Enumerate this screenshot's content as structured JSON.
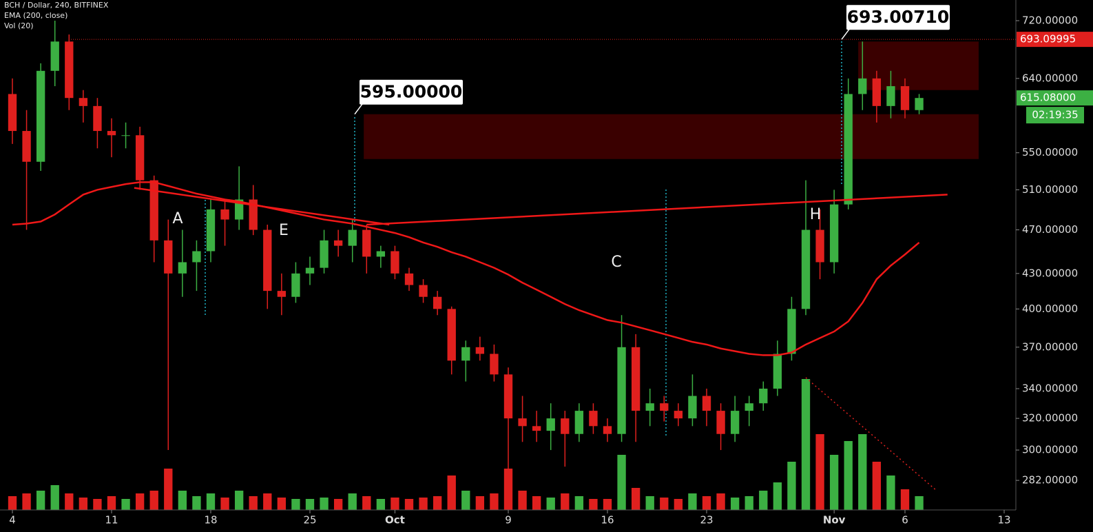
{
  "chart_data": {
    "type": "candlestick",
    "title": "BCH / Dollar, 240, BITFINEX",
    "log_scale": true,
    "categories": [
      "4",
      null,
      null,
      null,
      null,
      null,
      null,
      "11",
      null,
      null,
      null,
      null,
      null,
      null,
      "18",
      null,
      null,
      null,
      null,
      null,
      null,
      "25",
      null,
      null,
      null,
      null,
      null,
      "Oct",
      null,
      null,
      null,
      null,
      null,
      null,
      null,
      "9",
      null,
      null,
      null,
      null,
      null,
      null,
      "16",
      null,
      null,
      null,
      null,
      null,
      null,
      "23",
      null,
      null,
      null,
      null,
      null,
      null,
      null,
      null,
      "Nov",
      null,
      null,
      null,
      null,
      "6",
      null,
      null,
      null,
      null,
      null,
      null,
      "13"
    ],
    "open": [
      620,
      575,
      540,
      650,
      690,
      615,
      605,
      575,
      570,
      570,
      520,
      460,
      430,
      440,
      450,
      490,
      480,
      500,
      470,
      415,
      410,
      430,
      435,
      460,
      455,
      470,
      445,
      450,
      430,
      420,
      410,
      400,
      360,
      370,
      365,
      350,
      320,
      315,
      312,
      320,
      310,
      325,
      315,
      310,
      370,
      325,
      330,
      325,
      320,
      335,
      325,
      310,
      325,
      330,
      340,
      365,
      400,
      470,
      440,
      495,
      620,
      640,
      605,
      630,
      600,
      null,
      null,
      null,
      null,
      null,
      null
    ],
    "high": [
      640,
      600,
      660,
      720,
      700,
      625,
      615,
      590,
      585,
      580,
      525,
      480,
      470,
      460,
      500,
      500,
      535,
      515,
      475,
      430,
      440,
      445,
      470,
      470,
      480,
      475,
      455,
      455,
      435,
      425,
      415,
      402,
      375,
      378,
      372,
      355,
      335,
      325,
      330,
      325,
      330,
      330,
      320,
      395,
      380,
      340,
      335,
      330,
      350,
      340,
      330,
      335,
      335,
      345,
      375,
      410,
      520,
      490,
      510,
      640,
      690,
      650,
      650,
      640,
      620,
      null,
      null,
      null,
      null,
      null,
      null
    ],
    "low": [
      560,
      470,
      530,
      630,
      600,
      585,
      555,
      545,
      555,
      510,
      440,
      300,
      410,
      415,
      440,
      455,
      470,
      465,
      400,
      395,
      405,
      420,
      430,
      445,
      440,
      430,
      435,
      425,
      415,
      405,
      395,
      350,
      345,
      360,
      345,
      280,
      305,
      305,
      300,
      290,
      305,
      310,
      305,
      305,
      305,
      315,
      318,
      315,
      315,
      315,
      300,
      305,
      315,
      325,
      335,
      360,
      395,
      425,
      430,
      490,
      600,
      585,
      590,
      590,
      595,
      null,
      null,
      null,
      null,
      null,
      null
    ],
    "close": [
      575,
      540,
      650,
      690,
      615,
      605,
      575,
      570,
      570,
      520,
      460,
      430,
      440,
      450,
      490,
      480,
      500,
      470,
      415,
      410,
      430,
      435,
      460,
      455,
      470,
      445,
      450,
      430,
      420,
      410,
      400,
      360,
      370,
      365,
      350,
      320,
      315,
      312,
      320,
      310,
      325,
      315,
      310,
      370,
      325,
      330,
      325,
      320,
      335,
      325,
      310,
      325,
      330,
      340,
      365,
      400,
      470,
      440,
      495,
      620,
      640,
      605,
      630,
      600,
      615,
      null,
      null,
      null,
      null,
      null,
      null
    ],
    "up_color": "#3cb043",
    "down_color": "#e0201e",
    "ema": {
      "name": "EMA (200, close)",
      "color": "#f01818",
      "values": [
        475,
        476,
        478,
        485,
        495,
        505,
        510,
        513,
        516,
        518,
        518,
        514,
        510,
        506,
        503,
        500,
        498,
        495,
        492,
        489,
        486,
        483,
        480,
        478,
        476,
        473,
        470,
        467,
        463,
        458,
        454,
        449,
        445,
        440,
        435,
        429,
        422,
        416,
        410,
        404,
        399,
        395,
        391,
        389,
        386,
        383,
        380,
        377,
        374,
        372,
        369,
        367,
        365,
        364,
        364,
        366,
        372,
        377,
        382,
        390,
        405,
        425,
        437,
        447,
        458,
        null,
        null,
        null,
        null,
        null,
        null
      ]
    },
    "volume": {
      "name": "Vol (20)",
      "values": [
        10,
        12,
        14,
        18,
        12,
        9,
        8,
        10,
        8,
        12,
        14,
        30,
        14,
        10,
        12,
        9,
        14,
        10,
        12,
        9,
        8,
        8,
        9,
        8,
        12,
        10,
        8,
        9,
        8,
        9,
        10,
        25,
        14,
        10,
        12,
        30,
        14,
        10,
        9,
        12,
        10,
        8,
        8,
        40,
        16,
        10,
        9,
        8,
        12,
        10,
        12,
        9,
        10,
        14,
        20,
        35,
        95,
        55,
        40,
        50,
        55,
        35,
        25,
        15,
        10,
        null,
        null,
        null,
        null,
        null,
        null
      ]
    },
    "y2lim": [
      0,
      100
    ],
    "ylim": [
      265.5,
      751
    ],
    "yticks": [
      {
        "value": 282,
        "label": "282.00000"
      },
      {
        "value": 300,
        "label": "300.00000"
      },
      {
        "value": 320,
        "label": "320.00000"
      },
      {
        "value": 340,
        "label": "340.00000"
      },
      {
        "value": 370,
        "label": "370.00000"
      },
      {
        "value": 400,
        "label": "400.00000"
      },
      {
        "value": 430,
        "label": "430.00000"
      },
      {
        "value": 470,
        "label": "470.00000"
      },
      {
        "value": 510,
        "label": "510.00000"
      },
      {
        "value": 550,
        "label": "550.00000"
      },
      {
        "value": 640,
        "label": "640.00000"
      },
      {
        "value": 720,
        "label": "720.00000"
      }
    ],
    "trendlines": [
      {
        "values": [
          512,
          475
        ]
      },
      {
        "values": [
          475,
          505
        ]
      }
    ],
    "zones": [
      [
        543,
        595
      ],
      [
        625,
        690
      ]
    ],
    "high_line": {
      "value": 693.09995,
      "label": "693.09995"
    },
    "last_price": {
      "value": 615.08,
      "label": "615.08000"
    },
    "countdown": "02:19:35",
    "callouts": [
      {
        "value": 595,
        "label": "595.00000"
      },
      {
        "value": 693.0071,
        "label": "693.00710"
      }
    ],
    "annotations": [
      "A",
      "E",
      "C",
      "H"
    ]
  }
}
